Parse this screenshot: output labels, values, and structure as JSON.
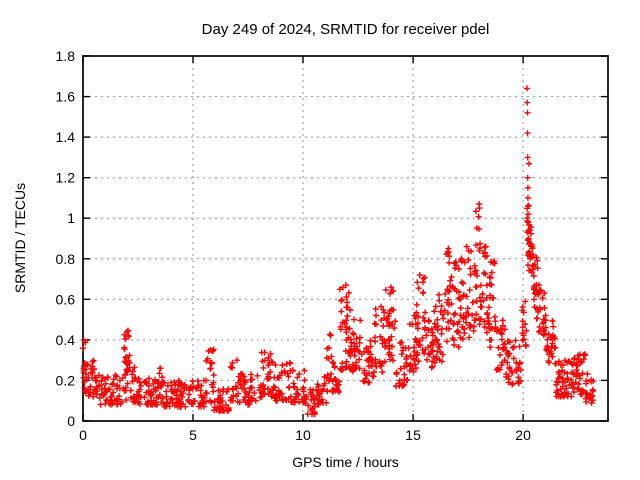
{
  "title": "Day 249 of 2024, SRMTID for receiver pdel",
  "chart_data": {
    "type": "scatter",
    "title": "Day 249 of 2024, SRMTID for receiver pdel",
    "xlabel": "GPS time / hours",
    "ylabel": "SRMTID / TECUs",
    "xlim": [
      0,
      23.86
    ],
    "ylim": [
      0,
      1.8
    ],
    "xticks": [
      0,
      5,
      10,
      15,
      20
    ],
    "xtick_labels": [
      "0",
      "5",
      "10",
      "15",
      "20"
    ],
    "yticks": [
      0,
      0.2,
      0.4,
      0.6,
      0.8,
      1.0,
      1.2,
      1.4,
      1.6,
      1.8
    ],
    "ytick_labels": [
      "0",
      "0.2",
      "0.4",
      "0.6",
      "0.8",
      "1",
      "1.2",
      "1.4",
      "1.6",
      "1.8"
    ],
    "grid": true,
    "legend": false,
    "marker_symbol": "+",
    "marker_color": "#ff0000",
    "grid_color": "#909090",
    "axis_color": "#000000",
    "background": "#ffffff",
    "seed": 2024249,
    "segments_note": "dense scatter envelope: [t_start_h, t_end_h, y_min_TECU, y_max_TECU, n_points, bottom_bias_exponent]",
    "segments": [
      [
        0.0,
        0.12,
        0.14,
        0.41,
        12,
        1
      ],
      [
        0.1,
        0.7,
        0.12,
        0.3,
        30,
        1.6
      ],
      [
        0.7,
        1.85,
        0.08,
        0.23,
        55,
        1.6
      ],
      [
        1.85,
        2.15,
        0.1,
        0.45,
        30,
        1
      ],
      [
        2.15,
        2.5,
        0.09,
        0.28,
        18,
        1.6
      ],
      [
        2.5,
        3.4,
        0.08,
        0.21,
        45,
        1.6
      ],
      [
        3.4,
        3.65,
        0.09,
        0.27,
        14,
        1.6
      ],
      [
        3.65,
        5.55,
        0.07,
        0.2,
        85,
        1.6
      ],
      [
        5.55,
        5.95,
        0.09,
        0.36,
        22,
        1.6
      ],
      [
        5.95,
        6.7,
        0.05,
        0.17,
        35,
        1.6
      ],
      [
        6.7,
        7.25,
        0.09,
        0.31,
        26,
        1.6
      ],
      [
        7.25,
        7.95,
        0.08,
        0.23,
        32,
        1.6
      ],
      [
        7.95,
        8.75,
        0.11,
        0.34,
        40,
        1.6
      ],
      [
        8.75,
        9.45,
        0.1,
        0.3,
        34,
        1.6
      ],
      [
        9.45,
        10.1,
        0.09,
        0.26,
        30,
        1.6
      ],
      [
        10.1,
        10.65,
        0.03,
        0.16,
        25,
        1.6
      ],
      [
        10.65,
        11.05,
        0.08,
        0.24,
        18,
        1.6
      ],
      [
        11.05,
        11.35,
        0.14,
        0.43,
        18,
        1.3
      ],
      [
        11.35,
        11.65,
        0.14,
        0.3,
        15,
        1.6
      ],
      [
        11.65,
        12.15,
        0.25,
        0.68,
        40,
        1.2
      ],
      [
        12.15,
        12.65,
        0.24,
        0.52,
        30,
        1.4
      ],
      [
        12.65,
        13.25,
        0.19,
        0.42,
        30,
        1.5
      ],
      [
        13.25,
        13.75,
        0.24,
        0.57,
        28,
        1.4
      ],
      [
        13.75,
        14.2,
        0.28,
        0.66,
        30,
        1.1
      ],
      [
        14.2,
        14.75,
        0.17,
        0.4,
        28,
        1.5
      ],
      [
        14.75,
        15.15,
        0.24,
        0.56,
        24,
        1.3
      ],
      [
        15.15,
        15.55,
        0.28,
        0.73,
        26,
        1.1
      ],
      [
        15.55,
        15.95,
        0.24,
        0.5,
        22,
        1.4
      ],
      [
        15.95,
        16.45,
        0.28,
        0.63,
        30,
        1.2
      ],
      [
        16.45,
        16.75,
        0.38,
        0.85,
        22,
        1
      ],
      [
        16.75,
        17.15,
        0.35,
        0.83,
        26,
        1
      ],
      [
        17.15,
        17.85,
        0.4,
        0.88,
        45,
        1
      ],
      [
        17.85,
        18.15,
        0.45,
        1.07,
        22,
        1
      ],
      [
        18.15,
        18.45,
        0.4,
        0.86,
        20,
        1
      ],
      [
        18.45,
        18.75,
        0.35,
        0.82,
        22,
        1
      ],
      [
        18.75,
        19.2,
        0.25,
        0.5,
        24,
        1.4
      ],
      [
        19.2,
        19.95,
        0.18,
        0.4,
        36,
        1.5
      ],
      [
        19.95,
        20.15,
        0.3,
        0.62,
        14,
        1
      ],
      [
        20.15,
        20.28,
        0.85,
        1.3,
        8,
        1
      ],
      [
        20.2,
        20.45,
        0.72,
        0.98,
        25,
        1
      ],
      [
        20.45,
        20.7,
        0.5,
        0.82,
        22,
        1
      ],
      [
        20.7,
        21.05,
        0.4,
        0.68,
        24,
        1.3
      ],
      [
        21.05,
        21.5,
        0.28,
        0.5,
        26,
        1.4
      ],
      [
        21.5,
        22.3,
        0.12,
        0.3,
        48,
        1.5
      ],
      [
        22.3,
        22.85,
        0.13,
        0.33,
        34,
        1.5
      ],
      [
        22.85,
        23.2,
        0.08,
        0.24,
        22,
        1.5
      ]
    ],
    "notable_points": [
      [
        0.03,
        0.4
      ],
      [
        2.0,
        0.44
      ],
      [
        5.8,
        0.35
      ],
      [
        7.0,
        0.3
      ],
      [
        11.95,
        0.67
      ],
      [
        14.0,
        0.66
      ],
      [
        15.3,
        0.72
      ],
      [
        16.6,
        0.85
      ],
      [
        18.0,
        1.07
      ],
      [
        18.02,
        1.05
      ],
      [
        18.3,
        0.86
      ],
      [
        20.18,
        1.64
      ],
      [
        20.19,
        1.57
      ],
      [
        20.2,
        1.52
      ],
      [
        20.2,
        1.42
      ],
      [
        20.21,
        1.3
      ],
      [
        20.21,
        1.2
      ],
      [
        20.22,
        1.15
      ],
      [
        20.22,
        1.1
      ],
      [
        20.23,
        1.02
      ],
      [
        20.23,
        0.98
      ],
      [
        20.24,
        0.94
      ],
      [
        20.25,
        0.9
      ]
    ]
  }
}
